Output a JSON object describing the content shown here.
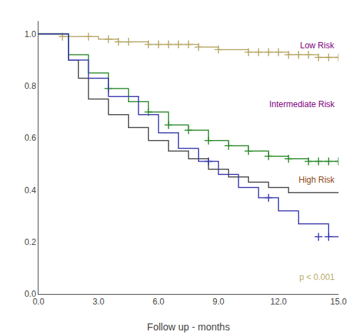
{
  "chart_data": {
    "type": "step",
    "xlabel": "Follow up - months",
    "xlim": [
      0.0,
      15.0
    ],
    "ylim": [
      0.0,
      1.05
    ],
    "xticks": [
      {
        "value": 0.0,
        "label": "0.0"
      },
      {
        "value": 3.0,
        "label": "3.0"
      },
      {
        "value": 6.0,
        "label": "6.0"
      },
      {
        "value": 9.0,
        "label": "9.0"
      },
      {
        "value": 12.0,
        "label": "12.0"
      },
      {
        "value": 15.0,
        "label": "15.0"
      }
    ],
    "yticks": [
      {
        "value": 0.0,
        "label": "0.0"
      },
      0.2,
      0.4,
      0.6,
      0.8,
      {
        "value": 1.0,
        "label": "1.0"
      }
    ],
    "grid": false,
    "series": [
      {
        "color": "#b8a96a",
        "x": [
          0.0,
          1.0,
          1.2,
          2.5,
          3.0,
          3.5,
          4.0,
          4.5,
          5.0,
          5.5,
          6.0,
          6.5,
          7.0,
          7.5,
          8.0,
          8.5,
          9.0,
          10.0,
          10.5,
          11.0,
          11.5,
          12.0,
          12.5,
          13.0,
          13.5,
          14.0,
          14.5,
          15.0
        ],
        "values": [
          1.0,
          1.0,
          0.99,
          0.99,
          0.98,
          0.98,
          0.97,
          0.97,
          0.97,
          0.96,
          0.96,
          0.96,
          0.96,
          0.96,
          0.95,
          0.95,
          0.94,
          0.94,
          0.93,
          0.93,
          0.93,
          0.93,
          0.92,
          0.92,
          0.92,
          0.91,
          0.91,
          0.91
        ]
      },
      {
        "type": "scatter",
        "marker": "plus",
        "color": "#b8a96a",
        "x": [
          1.2,
          2.5,
          3.5,
          4.0,
          4.5,
          5.5,
          6.0,
          6.5,
          7.0,
          7.5,
          8.0,
          9.0,
          10.5,
          11.0,
          11.5,
          12.0,
          12.5,
          13.0,
          13.5,
          14.0,
          14.5,
          15.0
        ],
        "values": [
          0.99,
          0.99,
          0.98,
          0.97,
          0.97,
          0.96,
          0.96,
          0.96,
          0.96,
          0.96,
          0.95,
          0.94,
          0.93,
          0.93,
          0.93,
          0.93,
          0.92,
          0.92,
          0.92,
          0.91,
          0.91,
          0.91
        ]
      },
      {
        "color": "#4a4a4a",
        "x": [
          0.0,
          1.5,
          1.5,
          2.0,
          2.0,
          2.5,
          2.5,
          3.5,
          3.5,
          4.5,
          4.5,
          5.5,
          5.5,
          6.0,
          6.5,
          6.5,
          7.0,
          7.5,
          7.5,
          8.5,
          8.5,
          9.5,
          9.5,
          10.5,
          10.5,
          11.5,
          11.5,
          12.5,
          12.5,
          15.0
        ],
        "values": [
          1.0,
          1.0,
          0.9,
          0.9,
          0.83,
          0.83,
          0.75,
          0.75,
          0.69,
          0.69,
          0.64,
          0.64,
          0.59,
          0.59,
          0.59,
          0.55,
          0.55,
          0.55,
          0.52,
          0.52,
          0.48,
          0.48,
          0.45,
          0.45,
          0.43,
          0.43,
          0.41,
          0.41,
          0.39,
          0.39
        ]
      },
      {
        "color": "#2e8b2e",
        "x": [
          0.0,
          1.5,
          1.5,
          2.5,
          2.5,
          3.5,
          3.5,
          4.5,
          4.5,
          5.5,
          5.5,
          6.5,
          6.5,
          7.5,
          7.5,
          8.5,
          8.5,
          9.5,
          9.5,
          10.5,
          10.5,
          11.5,
          11.5,
          12.5,
          12.5,
          13.5,
          13.5,
          15.0
        ],
        "values": [
          1.0,
          1.0,
          0.92,
          0.92,
          0.85,
          0.85,
          0.79,
          0.79,
          0.74,
          0.74,
          0.7,
          0.7,
          0.65,
          0.65,
          0.63,
          0.63,
          0.59,
          0.59,
          0.57,
          0.57,
          0.55,
          0.55,
          0.53,
          0.53,
          0.52,
          0.52,
          0.51,
          0.51
        ]
      },
      {
        "type": "scatter",
        "marker": "plus",
        "color": "#2e8b2e",
        "x": [
          3.5,
          5.5,
          6.5,
          7.5,
          8.5,
          9.5,
          10.5,
          11.5,
          12.5,
          13.5,
          14.0,
          14.5,
          15.0
        ],
        "values": [
          0.79,
          0.7,
          0.65,
          0.63,
          0.59,
          0.57,
          0.55,
          0.53,
          0.52,
          0.51,
          0.51,
          0.51,
          0.51
        ]
      },
      {
        "color": "#3a3ab0",
        "x": [
          0.0,
          1.5,
          1.5,
          2.5,
          2.5,
          3.5,
          3.5,
          5.0,
          5.0,
          6.0,
          6.0,
          7.0,
          7.0,
          8.0,
          8.0,
          9.0,
          9.0,
          10.0,
          10.0,
          11.0,
          11.0,
          12.0,
          12.0,
          13.0,
          13.0,
          14.0,
          14.5,
          15.0
        ],
        "values": [
          1.0,
          1.0,
          0.9,
          0.9,
          0.83,
          0.83,
          0.76,
          0.76,
          0.69,
          0.69,
          0.62,
          0.62,
          0.56,
          0.56,
          0.51,
          0.51,
          0.46,
          0.46,
          0.41,
          0.41,
          0.37,
          0.37,
          0.32,
          0.32,
          0.27,
          0.27,
          0.22,
          0.22
        ]
      },
      {
        "type": "scatter",
        "marker": "plus",
        "color": "#3a3ab0",
        "x": [
          8.5,
          11.5,
          14.0,
          14.5
        ],
        "values": [
          0.51,
          0.37,
          0.22,
          0.22
        ]
      }
    ],
    "annotations": [
      {
        "text": "Low Risk",
        "x": 14.9,
        "y": 0.955,
        "color": "#800080"
      },
      {
        "text": "Intermediate Risk",
        "x": 14.9,
        "y": 0.73,
        "color": "#800080"
      },
      {
        "text": "High Risk",
        "x": 14.9,
        "y": 0.44,
        "color": "#8b4513"
      },
      {
        "text": "p < 0.001",
        "x": 14.9,
        "y": 0.065,
        "color": "#b8a96a"
      }
    ]
  }
}
